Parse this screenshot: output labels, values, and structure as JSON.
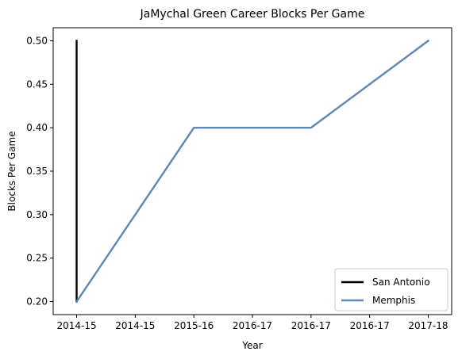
{
  "chart_data": {
    "type": "line",
    "title": "JaMychal Green Career Blocks Per Game",
    "xlabel": "Year",
    "ylabel": "Blocks Per Game",
    "x_tick_labels": [
      "2014-15",
      "2014-15",
      "2015-16",
      "2016-17",
      "2016-17",
      "2016-17",
      "2017-18"
    ],
    "ylim": [
      0.185,
      0.515
    ],
    "y_ticks": [
      0.2,
      0.25,
      0.3,
      0.35,
      0.4,
      0.45,
      0.5
    ],
    "y_tick_labels": [
      "0.20",
      "0.25",
      "0.30",
      "0.35",
      "0.40",
      "0.45",
      "0.50"
    ],
    "series": [
      {
        "name": "San Antonio",
        "color": "#000000",
        "x": [
          0,
          0
        ],
        "y": [
          0.5,
          0.2
        ]
      },
      {
        "name": "Memphis",
        "color": "#5f87b4",
        "x": [
          0,
          2,
          4,
          6
        ],
        "y": [
          0.2,
          0.4,
          0.4,
          0.5
        ]
      }
    ],
    "grid": false,
    "legend_position": "lower-right"
  }
}
